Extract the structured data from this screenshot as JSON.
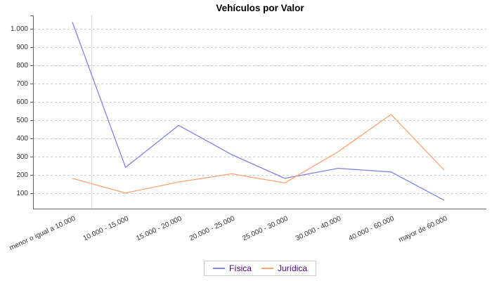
{
  "chart_data": {
    "type": "line",
    "title": "Vehículos por Valor",
    "categories": [
      "menor o igual a 10.000",
      "10.000 - 15.000",
      "15.000 - 20.000",
      "20.000 - 25.000",
      "25.000 - 30.000",
      "30.000 - 40.000",
      "40.000 - 60.000",
      "mayor de 60.000"
    ],
    "series": [
      {
        "name": "Física",
        "color": "#8181E8",
        "values": [
          1035,
          240,
          470,
          310,
          180,
          235,
          215,
          60
        ]
      },
      {
        "name": "Jurídica",
        "color": "#FCA371",
        "values": [
          180,
          100,
          160,
          205,
          155,
          325,
          530,
          225
        ]
      }
    ],
    "xlabel": "",
    "ylabel": "",
    "ylim": [
      0,
      1070
    ],
    "y_ticks": {
      "values": [
        100,
        200,
        300,
        400,
        500,
        600,
        700,
        800,
        900,
        1000
      ],
      "labels": [
        "100",
        "200",
        "300",
        "400",
        "500",
        "600",
        "700",
        "800",
        "900",
        "1.000"
      ]
    },
    "grid": {
      "horizontal": "dashed",
      "vertical": "none"
    },
    "legend_position": "bottom"
  },
  "colors": {
    "background": "#FFFFFF",
    "axis": "#666666",
    "gridline": "#CCCCCC",
    "domain_line": "#DDDDDD",
    "tick_label": "#333333",
    "title_text": "#000000",
    "legend_text": "#4B0082",
    "legend_border": "#CCCCCC"
  }
}
